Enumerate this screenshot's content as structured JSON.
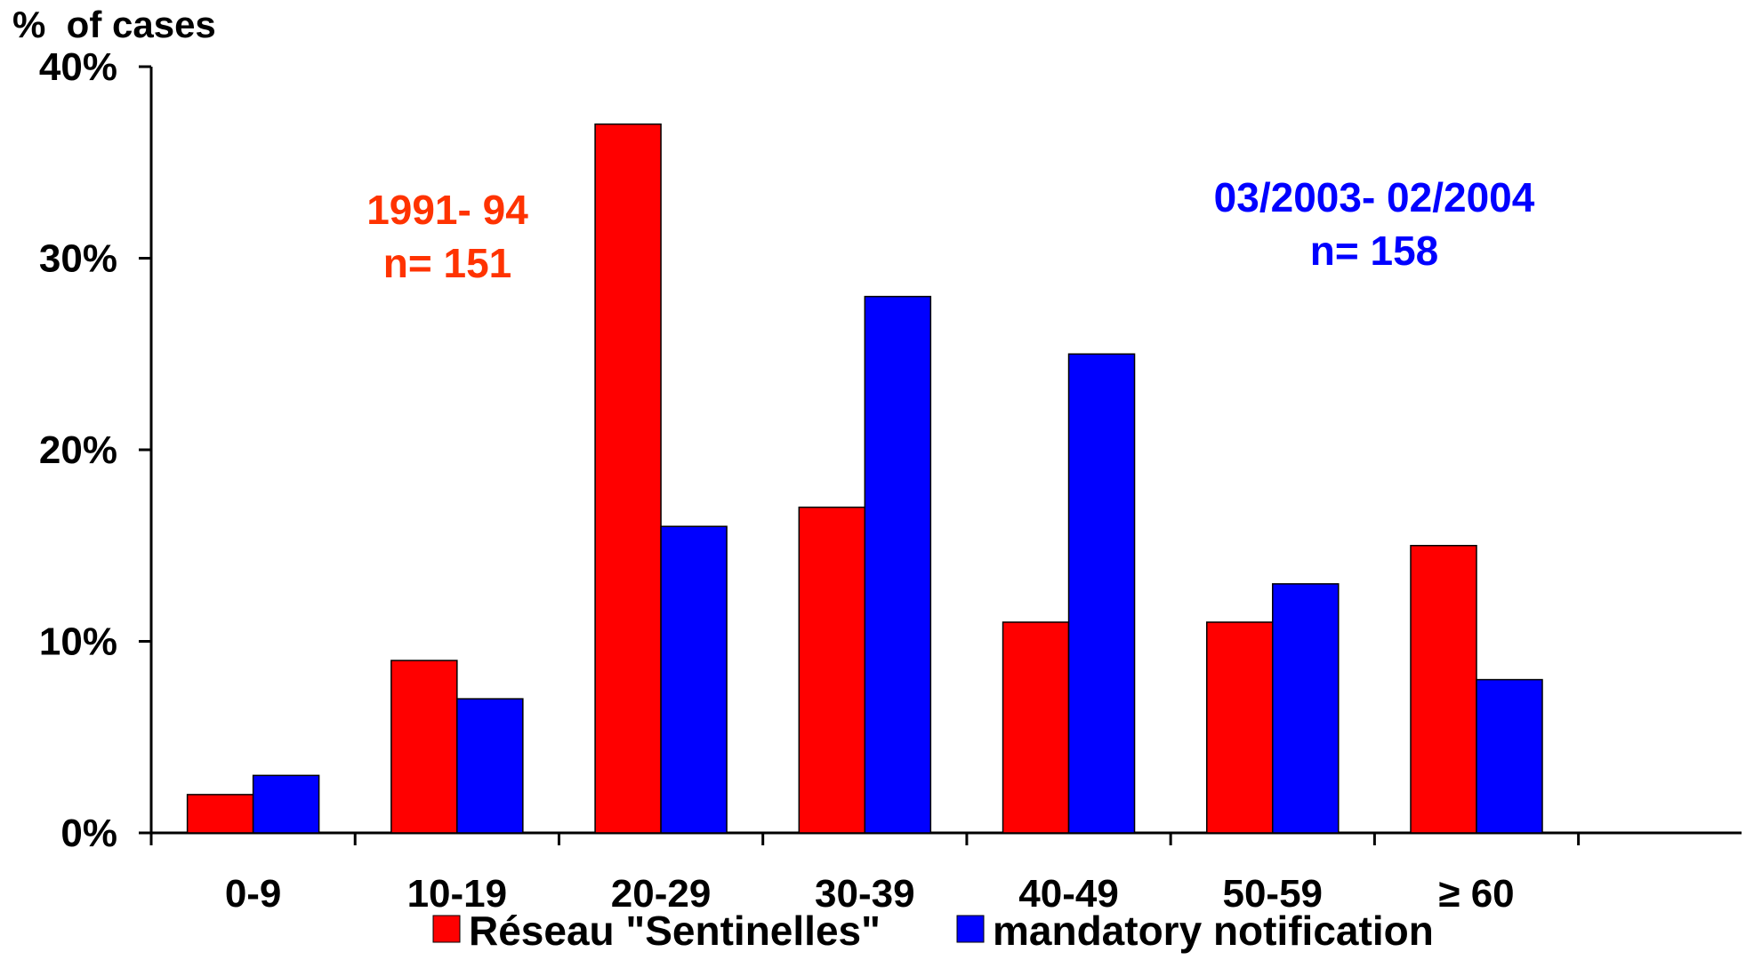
{
  "chart_data": {
    "type": "bar",
    "ylabel": "%  of cases",
    "xlabel": "",
    "ylim": [
      0,
      40
    ],
    "yticks": [
      0,
      10,
      20,
      30,
      40
    ],
    "ytick_labels": [
      "0%",
      "10%",
      "20%",
      "30%",
      "40%"
    ],
    "categories": [
      "0-9",
      "10-19",
      "20-29",
      "30-39",
      "40-49",
      "50-59",
      "≥ 60"
    ],
    "series": [
      {
        "name": "Réseau \"Sentinelles\"",
        "color": "#ff0000",
        "values": [
          2,
          9,
          37,
          17,
          11,
          11,
          15
        ]
      },
      {
        "name": "mandatory notification",
        "color": "#0000ff",
        "values": [
          3,
          7,
          16,
          28,
          25,
          13,
          8
        ]
      }
    ],
    "annotations": [
      {
        "lines": [
          "1991- 94",
          "n= 151"
        ],
        "color": "#ff3300",
        "series": 0
      },
      {
        "lines": [
          "03/2003- 02/2004",
          "n= 158"
        ],
        "color": "#0000ff",
        "series": 1
      }
    ],
    "legend_position": "bottom",
    "grid": false
  }
}
